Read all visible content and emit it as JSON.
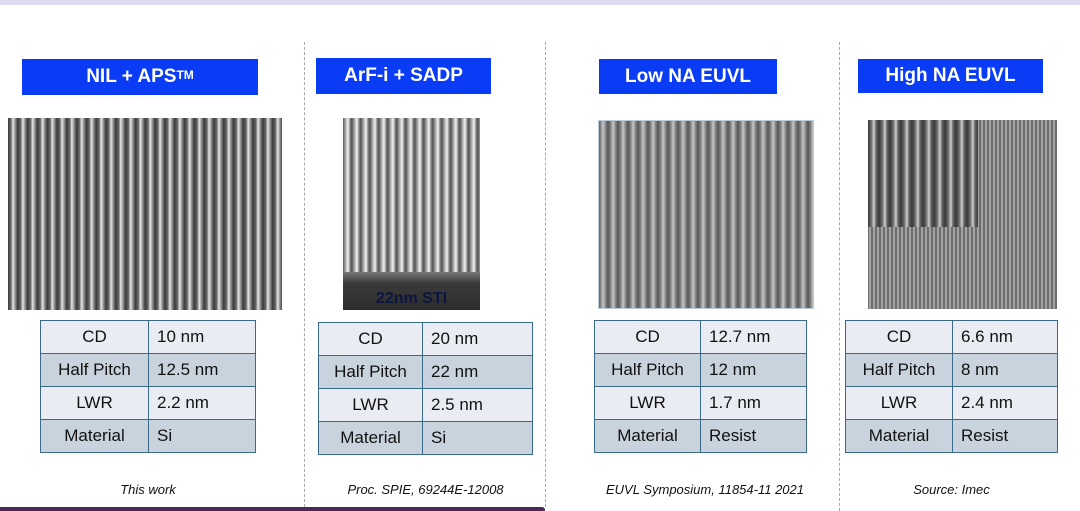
{
  "panels": [
    {
      "title": "NIL + APS",
      "title_sup": "TM",
      "image_label": "",
      "rows": [
        [
          "CD",
          "10 nm"
        ],
        [
          "Half Pitch",
          "12.5 nm"
        ],
        [
          "LWR",
          "2.2 nm"
        ],
        [
          "Material",
          "Si"
        ]
      ],
      "caption": "This work"
    },
    {
      "title": "ArF-i + SADP",
      "image_label": "22nm STI",
      "rows": [
        [
          "CD",
          "20 nm"
        ],
        [
          "Half Pitch",
          "22 nm"
        ],
        [
          "LWR",
          "2.5 nm"
        ],
        [
          "Material",
          "Si"
        ]
      ],
      "caption": "Proc. SPIE, 69244E-12008"
    },
    {
      "title": "Low NA EUVL",
      "rows": [
        [
          "CD",
          "12.7 nm"
        ],
        [
          "Half Pitch",
          "12 nm"
        ],
        [
          "LWR",
          "1.7 nm"
        ],
        [
          "Material",
          "Resist"
        ]
      ],
      "caption": "EUVL Symposium, 11854-11 2021"
    },
    {
      "title": "High NA EUVL",
      "rows": [
        [
          "CD",
          "6.6 nm"
        ],
        [
          "Half Pitch",
          "8 nm"
        ],
        [
          "LWR",
          "2.4 nm"
        ],
        [
          "Material",
          "Resist"
        ]
      ],
      "caption": "Source: Imec"
    }
  ],
  "colors": {
    "header": "#0a3cf5",
    "table_border": "#3a6a8a",
    "row_light": "#e9edf3",
    "row_dark": "#c9d3dd",
    "bottom_line": "#4a2a5c"
  }
}
